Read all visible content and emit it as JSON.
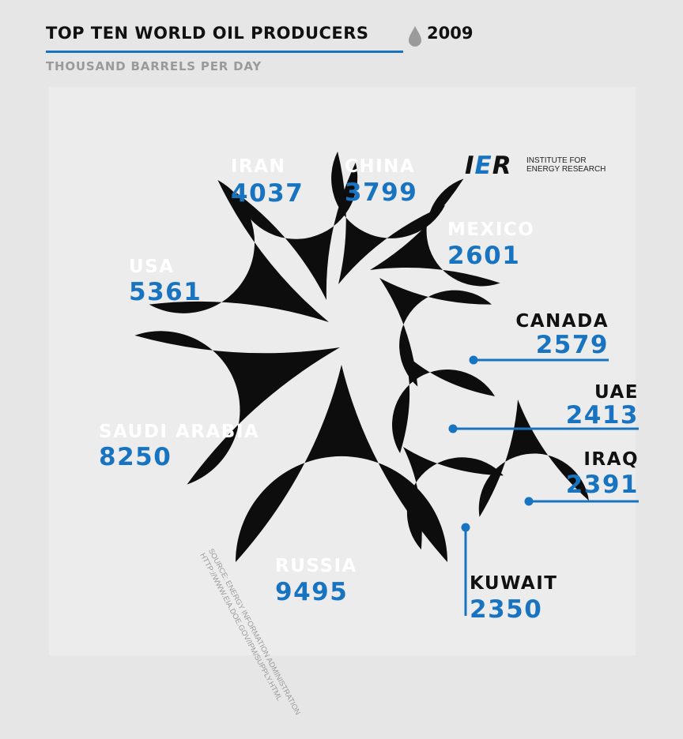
{
  "header": {
    "title": "TOP TEN WORLD OIL PRODUCERS",
    "year": "2009",
    "subtitle": "THOUSAND BARRELS PER DAY"
  },
  "logo": {
    "mark_left": "I",
    "mark_e": "E",
    "mark_right": "R",
    "text_line1": "INSTITUTE FOR",
    "text_line2": "ENERGY RESEARCH"
  },
  "source": {
    "line1": "SOURCE: ENERGY INFORMATION ADMINISTRATION",
    "line2": "HTTP://WWW.EIA.DOE.GOV/IPM/SUPPLY.HTML"
  },
  "colors": {
    "accent": "#1874c0",
    "drop": "#0d0d0d",
    "label": "#ffffff",
    "background": "#e6e6e6",
    "subtitle": "#9a9a9a"
  },
  "chart_data": {
    "type": "bar",
    "title": "TOP TEN WORLD OIL PRODUCERS",
    "subtitle": "THOUSAND BARRELS PER DAY",
    "categories": [
      "RUSSIA",
      "SAUDI ARABIA",
      "USA",
      "IRAN",
      "CHINA",
      "MEXICO",
      "CANADA",
      "UAE",
      "IRAQ",
      "KUWAIT"
    ],
    "values": [
      9495,
      8250,
      5361,
      4037,
      3799,
      2601,
      2579,
      2413,
      2391,
      2350
    ]
  }
}
